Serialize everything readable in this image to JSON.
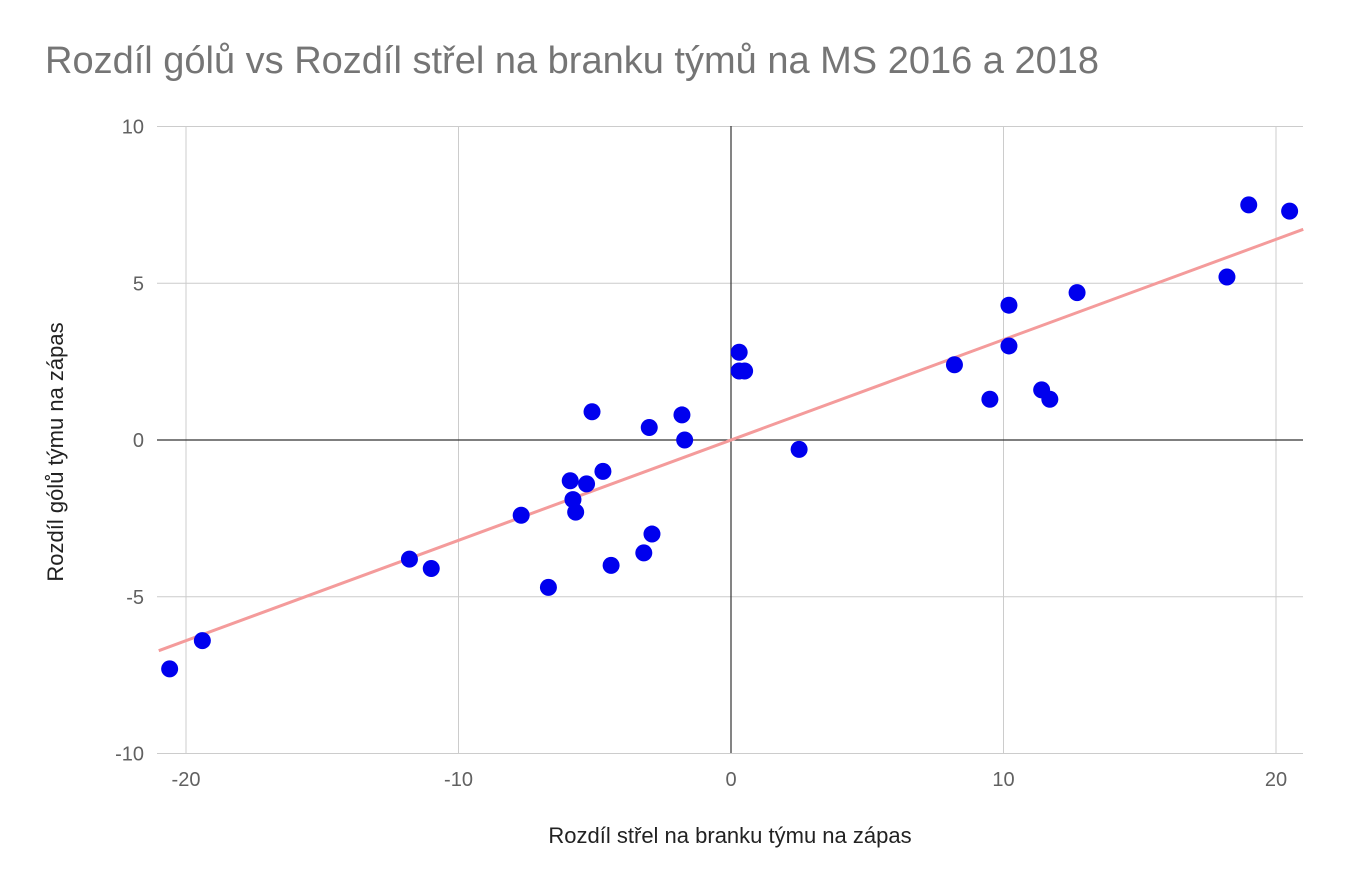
{
  "chart_data": {
    "type": "scatter",
    "title": "Rozdíl gólů vs Rozdíl střel na branku týmů na MS 2016 a 2018",
    "xlabel": "Rozdíl střel na branku týmu na zápas",
    "ylabel": "Rozdíl gólů týmu na zápas",
    "xlim": [
      -21,
      21
    ],
    "ylim": [
      -10,
      10
    ],
    "x_ticks": [
      "-20",
      "-10",
      "0",
      "10",
      "20"
    ],
    "y_ticks": [
      "10",
      "5",
      "0",
      "-5",
      "-10"
    ],
    "grid": true,
    "legend": "none",
    "colors": {
      "points": "#0000ee",
      "trendline": "#f49b9b",
      "grid": "#cccccc",
      "zero_axis": "#333333"
    },
    "points": [
      {
        "x": -20.6,
        "y": -7.3
      },
      {
        "x": -19.4,
        "y": -6.4
      },
      {
        "x": -11.8,
        "y": -3.8
      },
      {
        "x": -11.0,
        "y": -4.1
      },
      {
        "x": -7.7,
        "y": -2.4
      },
      {
        "x": -6.7,
        "y": -4.7
      },
      {
        "x": -5.9,
        "y": -1.3
      },
      {
        "x": -5.8,
        "y": -1.9
      },
      {
        "x": -5.7,
        "y": -2.3
      },
      {
        "x": -5.3,
        "y": -1.4
      },
      {
        "x": -5.1,
        "y": 0.9
      },
      {
        "x": -4.7,
        "y": -1.0
      },
      {
        "x": -4.4,
        "y": -4.0
      },
      {
        "x": -3.2,
        "y": -3.6
      },
      {
        "x": -3.0,
        "y": 0.4
      },
      {
        "x": -2.9,
        "y": -3.0
      },
      {
        "x": -1.8,
        "y": 0.8
      },
      {
        "x": -1.7,
        "y": 0.0
      },
      {
        "x": 0.3,
        "y": 2.8
      },
      {
        "x": 0.3,
        "y": 2.2
      },
      {
        "x": 0.5,
        "y": 2.2
      },
      {
        "x": 2.5,
        "y": -0.3
      },
      {
        "x": 8.2,
        "y": 2.4
      },
      {
        "x": 9.5,
        "y": 1.3
      },
      {
        "x": 10.2,
        "y": 4.3
      },
      {
        "x": 10.2,
        "y": 3.0
      },
      {
        "x": 11.4,
        "y": 1.6
      },
      {
        "x": 11.7,
        "y": 1.3
      },
      {
        "x": 12.7,
        "y": 4.7
      },
      {
        "x": 18.2,
        "y": 5.2
      },
      {
        "x": 19.0,
        "y": 7.5
      },
      {
        "x": 20.5,
        "y": 7.3
      }
    ],
    "trendline": {
      "type": "linear",
      "slope": 0.32,
      "intercept": 0.0
    }
  }
}
